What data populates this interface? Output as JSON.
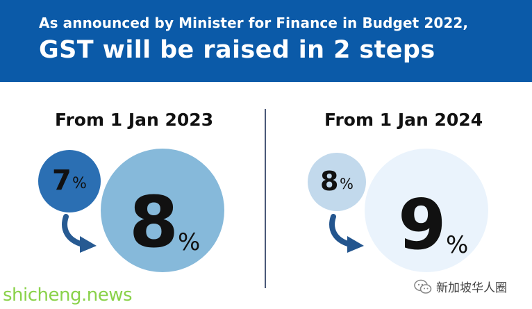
{
  "header": {
    "subtitle": "As announced by Minister for Finance in Budget 2022,",
    "title": "GST will be raised in 2 steps"
  },
  "steps": [
    {
      "date": "From 1 Jan 2023",
      "from_rate": "7",
      "from_percent": "%",
      "to_rate": "8",
      "to_percent": "%"
    },
    {
      "date": "From 1 Jan 2024",
      "from_rate": "8",
      "from_percent": "%",
      "to_rate": "9",
      "to_percent": "%"
    }
  ],
  "watermarks": {
    "left": "shicheng.news",
    "right": "新加坡华人圈",
    "right_icon": "wechat-icon"
  },
  "colors": {
    "header_bg": "#0b5aa8",
    "step1_small_circle": "#2b6fb3",
    "step1_large_circle": "#86b9da",
    "step2_small_circle": "#c2d9ec",
    "step2_large_circle": "#eaf3fc",
    "arrow_step1": "#275a92",
    "arrow_step2": "#23558e",
    "watermark_left": "#8ad24a"
  }
}
